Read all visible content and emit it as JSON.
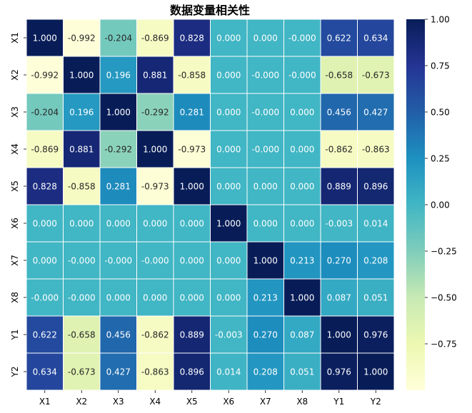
{
  "chart_data": {
    "type": "heatmap",
    "title": "数据变量相关性",
    "x_labels": [
      "X1",
      "X2",
      "X3",
      "X4",
      "X5",
      "X6",
      "X7",
      "X8",
      "Y1",
      "Y2"
    ],
    "y_labels": [
      "X1",
      "X2",
      "X3",
      "X4",
      "X5",
      "X6",
      "X7",
      "X8",
      "Y1",
      "Y2"
    ],
    "values": [
      [
        1.0,
        -0.992,
        -0.204,
        -0.869,
        0.828,
        0.0,
        0.0,
        -0.0,
        0.622,
        0.634
      ],
      [
        -0.992,
        1.0,
        0.196,
        0.881,
        -0.858,
        0.0,
        -0.0,
        -0.0,
        -0.658,
        -0.673
      ],
      [
        -0.204,
        0.196,
        1.0,
        -0.292,
        0.281,
        0.0,
        -0.0,
        0.0,
        0.456,
        0.427
      ],
      [
        -0.869,
        0.881,
        -0.292,
        1.0,
        -0.973,
        0.0,
        -0.0,
        0.0,
        -0.862,
        -0.863
      ],
      [
        0.828,
        -0.858,
        0.281,
        -0.973,
        1.0,
        0.0,
        0.0,
        0.0,
        0.889,
        0.896
      ],
      [
        0.0,
        0.0,
        0.0,
        0.0,
        0.0,
        1.0,
        0.0,
        0.0,
        -0.003,
        0.014
      ],
      [
        0.0,
        -0.0,
        -0.0,
        -0.0,
        0.0,
        0.0,
        1.0,
        0.213,
        0.27,
        0.208
      ],
      [
        -0.0,
        -0.0,
        0.0,
        0.0,
        0.0,
        0.0,
        0.213,
        1.0,
        0.087,
        0.051
      ],
      [
        0.622,
        -0.658,
        0.456,
        -0.862,
        0.889,
        -0.003,
        0.27,
        0.087,
        1.0,
        0.976
      ],
      [
        0.634,
        -0.673,
        0.427,
        -0.863,
        0.896,
        0.014,
        0.208,
        0.051,
        0.976,
        1.0
      ]
    ],
    "cell_labels": [
      [
        "1.000",
        "-0.992",
        "-0.204",
        "-0.869",
        "0.828",
        "0.000",
        "0.000",
        "-0.000",
        "0.622",
        "0.634"
      ],
      [
        "-0.992",
        "1.000",
        "0.196",
        "0.881",
        "-0.858",
        "0.000",
        "-0.000",
        "-0.000",
        "-0.658",
        "-0.673"
      ],
      [
        "-0.204",
        "0.196",
        "1.000",
        "-0.292",
        "0.281",
        "0.000",
        "-0.000",
        "0.000",
        "0.456",
        "0.427"
      ],
      [
        "-0.869",
        "0.881",
        "-0.292",
        "1.000",
        "-0.973",
        "0.000",
        "-0.000",
        "0.000",
        "-0.862",
        "-0.863"
      ],
      [
        "0.828",
        "-0.858",
        "0.281",
        "-0.973",
        "1.000",
        "0.000",
        "0.000",
        "0.000",
        "0.889",
        "0.896"
      ],
      [
        "0.000",
        "0.000",
        "0.000",
        "0.000",
        "0.000",
        "1.000",
        "0.000",
        "0.000",
        "-0.003",
        "0.014"
      ],
      [
        "0.000",
        "-0.000",
        "-0.000",
        "-0.000",
        "0.000",
        "0.000",
        "1.000",
        "0.213",
        "0.270",
        "0.208"
      ],
      [
        "-0.000",
        "-0.000",
        "0.000",
        "0.000",
        "0.000",
        "0.000",
        "0.213",
        "1.000",
        "0.087",
        "0.051"
      ],
      [
        "0.622",
        "-0.658",
        "0.456",
        "-0.862",
        "0.889",
        "-0.003",
        "0.270",
        "0.087",
        "1.000",
        "0.976"
      ],
      [
        "0.634",
        "-0.673",
        "0.427",
        "-0.863",
        "0.896",
        "0.014",
        "0.208",
        "0.051",
        "0.976",
        "1.000"
      ]
    ],
    "colorbar": {
      "range": [
        -1.0,
        1.0
      ],
      "ticks": [
        1.0,
        0.75,
        0.5,
        0.25,
        0.0,
        -0.25,
        -0.5,
        -0.75
      ],
      "tick_labels": [
        "1.00",
        "0.75",
        "0.50",
        "0.25",
        "0.00",
        "−0.25",
        "−0.50",
        "−0.75"
      ]
    },
    "colormap": "YlGnBu",
    "colormap_stops": [
      "#ffffd9",
      "#edf8b1",
      "#c7e9b4",
      "#7fcdbb",
      "#41b6c4",
      "#1d91c0",
      "#225ea8",
      "#253494",
      "#081d58"
    ],
    "grid": false
  }
}
